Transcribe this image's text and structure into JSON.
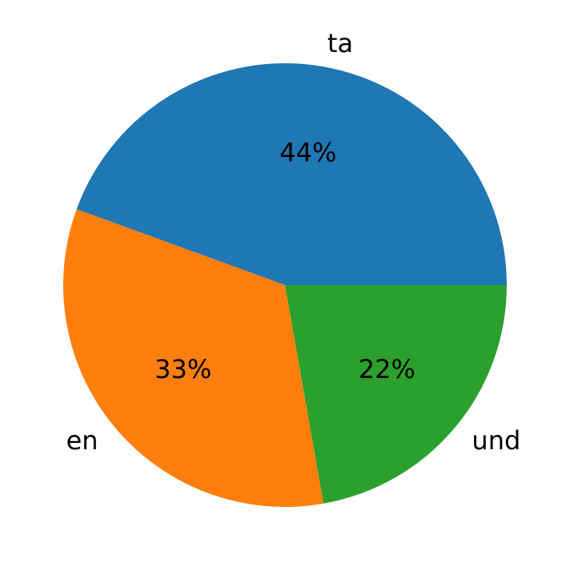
{
  "chart_data": {
    "type": "pie",
    "categories": [
      "ta",
      "en",
      "und"
    ],
    "values": [
      44,
      33,
      22
    ],
    "value_labels": [
      "44%",
      "33%",
      "22%"
    ],
    "colors": [
      "#1f77b4",
      "#ff7f0e",
      "#2ca02c"
    ]
  }
}
